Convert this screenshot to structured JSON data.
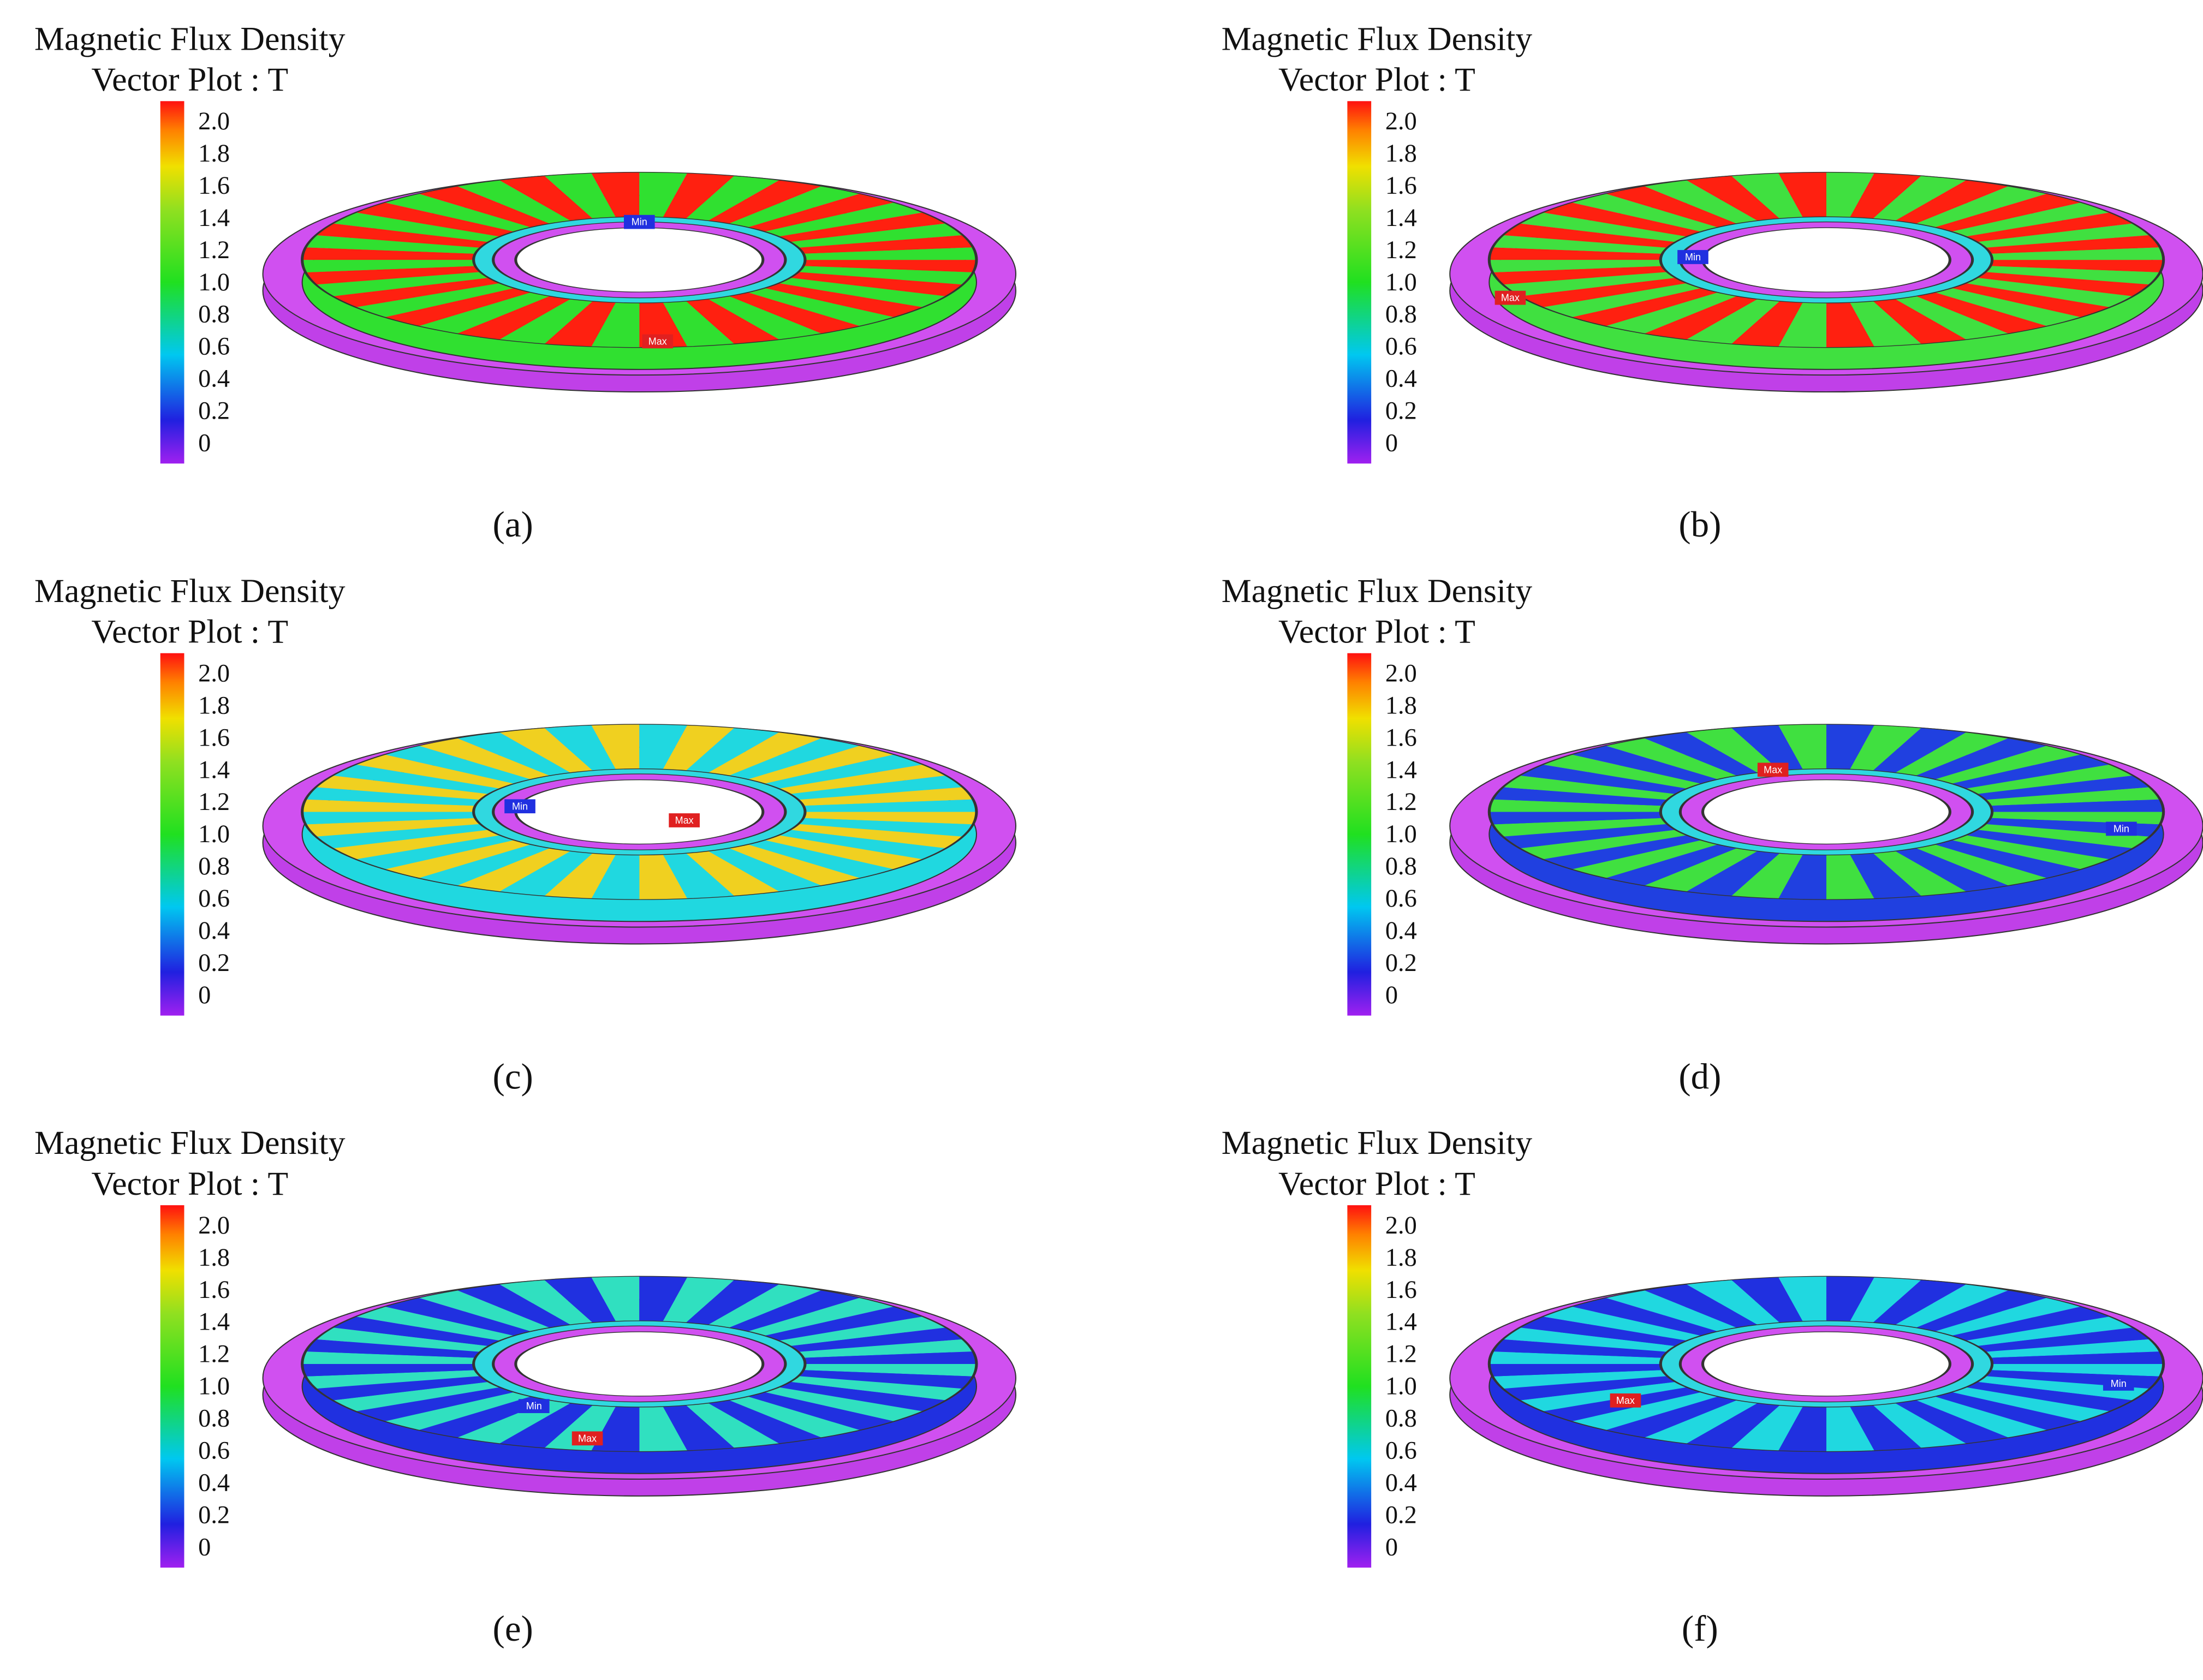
{
  "panels": [
    {
      "title": "Magnetic Flux Density",
      "subtitle": "Vector Plot : T",
      "ticks": [
        "2.0",
        "1.8",
        "1.6",
        "1.4",
        "1.2",
        "1.0",
        "0.8",
        "0.6",
        "0.4",
        "0.2",
        "0"
      ],
      "min_label": "Min",
      "max_label": "Max",
      "label": "(a)"
    },
    {
      "title": "Magnetic Flux Density",
      "subtitle": "Vector Plot : T",
      "ticks": [
        "2.0",
        "1.8",
        "1.6",
        "1.4",
        "1.2",
        "1.0",
        "0.8",
        "0.6",
        "0.4",
        "0.2",
        "0"
      ],
      "min_label": "Min",
      "max_label": "Max",
      "label": "(b)"
    },
    {
      "title": "Magnetic Flux Density",
      "subtitle": "Vector Plot : T",
      "ticks": [
        "2.0",
        "1.8",
        "1.6",
        "1.4",
        "1.2",
        "1.0",
        "0.8",
        "0.6",
        "0.4",
        "0.2",
        "0"
      ],
      "min_label": "Min",
      "max_label": "Max",
      "label": "(c)"
    },
    {
      "title": "Magnetic Flux Density",
      "subtitle": "Vector Plot : T",
      "ticks": [
        "2.0",
        "1.8",
        "1.6",
        "1.4",
        "1.2",
        "1.0",
        "0.8",
        "0.6",
        "0.4",
        "0.2",
        "0"
      ],
      "min_label": "Min",
      "max_label": "Max",
      "label": "(d)"
    },
    {
      "title": "Magnetic Flux Density",
      "subtitle": "Vector Plot : T",
      "ticks": [
        "2.0",
        "1.8",
        "1.6",
        "1.4",
        "1.2",
        "1.0",
        "0.8",
        "0.6",
        "0.4",
        "0.2",
        "0"
      ],
      "min_label": "Min",
      "max_label": "Max",
      "label": "(e)"
    },
    {
      "title": "Magnetic Flux Density",
      "subtitle": "Vector Plot : T",
      "ticks": [
        "2.0",
        "1.8",
        "1.6",
        "1.4",
        "1.2",
        "1.0",
        "0.8",
        "0.6",
        "0.4",
        "0.2",
        "0"
      ],
      "min_label": "Min",
      "max_label": "Max",
      "label": "(f)"
    }
  ]
}
